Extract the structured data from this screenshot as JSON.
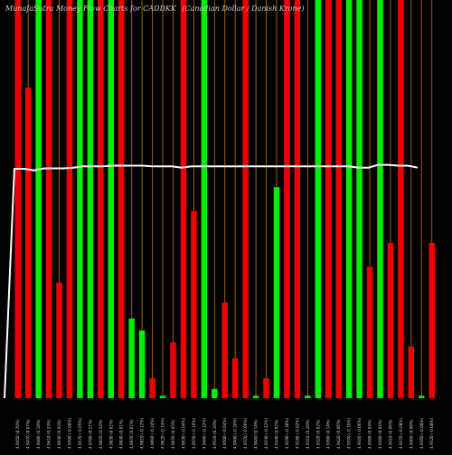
{
  "page": {
    "title_part1": "MunafaSutra Money Flow Charts for CADDKK",
    "title_part2": "(Canadian Dollar / Danish Krone)"
  },
  "chart_data": {
    "type": "bar",
    "title": "MunafaSutra Money Flow Charts for CADDKK (Canadian Dollar / Danish Krone)",
    "xlabel": "",
    "ylabel": "",
    "ylim": [
      0,
      100
    ],
    "grid": "vertical",
    "colors": {
      "up": "#00ee00",
      "down": "#ee0000",
      "grid": "#b36a00",
      "line": "#ffffff",
      "background": "#000000"
    },
    "categories": [
      "4.9450 (0.70%)",
      "4.9470 (0.07%)",
      "4.9480 (0.18%)",
      "4.9610 (0.33%)",
      "4.9630 (0.04%)",
      "4.9590 (-0.08%)",
      "4.9570 (-0.05%)",
      "4.9700 (0.27%)",
      "4.9820 (0.24%)",
      "4.9830 (0.02%)",
      "4.9830 (0.01%)",
      "4.9870 (0.07%)",
      "4.9810 (-0.12%)",
      "4.9690 (-0.24%)",
      "4.9620 (-0.14%)",
      "4.9650 (0.05%)",
      "4.9630 (-0.04%)",
      "4.9550 (-0.16%)",
      "4.9440 (-0.22%)",
      "4.9520 (0.16%)",
      "4.9500 (-0.04%)",
      "4.9400 (-0.20%)",
      "4.9370 (-0.06%)",
      "4.9440 (0.14%)",
      "4.9330 (-0.22%)",
      "4.9340 (0.02%)",
      "4.9190 (-0.30%)",
      "4.9180 (-0.02%)",
      "4.9310 (0.26%)",
      "4.9320 (0.02%)",
      "4.9390 (0.14%)",
      "4.9420 (0.06%)",
      "4.9370 (-0.10%)",
      "4.9340 (-0.06%)",
      "4.9360 (0.04%)",
      "4.9380 (0.04%)",
      "4.9410 (0.06%)",
      "4.9370 (-0.08%)",
      "4.9400 (0.06%)",
      "4.9360 (-0.08%)",
      "4.9320 (-0.08%)"
    ],
    "series": [
      {
        "values": [
          100,
          78,
          100,
          100,
          29,
          100,
          100,
          100,
          100,
          100,
          100,
          20,
          17,
          5,
          0.6,
          14,
          100,
          47,
          100,
          2.3,
          24,
          10,
          100,
          0.6,
          5,
          53,
          100,
          100,
          0.6,
          100,
          100,
          100,
          100,
          100,
          33,
          100,
          39,
          100,
          13,
          0.6,
          39
        ],
        "directions": [
          "down",
          "down",
          "up",
          "down",
          "down",
          "down",
          "up",
          "up",
          "down",
          "up",
          "down",
          "up",
          "up",
          "down",
          "up",
          "down",
          "down",
          "down",
          "up",
          "up",
          "down",
          "down",
          "down",
          "up",
          "down",
          "up",
          "down",
          "down",
          "up",
          "up",
          "down",
          "down",
          "up",
          "up",
          "down",
          "up",
          "down",
          "down",
          "down",
          "up",
          "down"
        ]
      }
    ],
    "flow_line": {
      "values": [
        0,
        57.6,
        57.6,
        57.2,
        57.7,
        57.7,
        57.7,
        57.9,
        58.2,
        58.2,
        58.2,
        58.4,
        58.4,
        58.4,
        58.4,
        58.2,
        58.2,
        58.2,
        57.9,
        58.2,
        58.2,
        58.2,
        58.2,
        58.2,
        58.2,
        58.2,
        58.2,
        58.2,
        58.2,
        58.2,
        58.2,
        58.2,
        58.2,
        58.2,
        58.2,
        58.2,
        57.9,
        57.9,
        58.6,
        58.6,
        58.4,
        58.4,
        57.9
      ]
    }
  }
}
